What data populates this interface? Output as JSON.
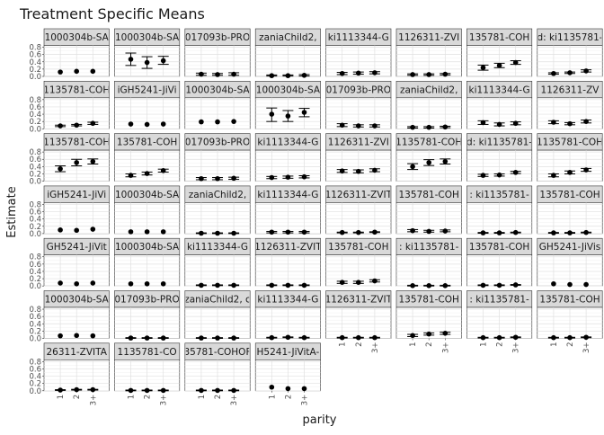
{
  "chart_data": {
    "type": "scatter",
    "title": "Treatment Specific Means",
    "xlabel": "parity",
    "ylabel": "Estimate",
    "x_categories": [
      "1",
      "2",
      "3+"
    ],
    "y_ticks": [
      "0.0",
      "0.2",
      "0.4",
      "0.6",
      "0.8"
    ],
    "ylim": [
      0,
      0.85
    ],
    "grid": true,
    "error_bars": true,
    "point_color": "#000000",
    "strip_color": "#d9d9d9",
    "ncol": 8,
    "panels": [
      {
        "strip": "1000304b-SA",
        "values": [
          0.12,
          0.14,
          0.14
        ],
        "lower": [
          null,
          null,
          null
        ],
        "upper": [
          null,
          null,
          null
        ]
      },
      {
        "strip": "1000304b-SA",
        "values": [
          0.47,
          0.38,
          0.43
        ],
        "lower": [
          0.3,
          0.22,
          0.33
        ],
        "upper": [
          0.64,
          0.54,
          0.55
        ]
      },
      {
        "strip": "017093b-PRO",
        "values": [
          0.06,
          0.05,
          0.06
        ],
        "lower": [
          0.03,
          0.03,
          0.03
        ],
        "upper": [
          0.09,
          0.08,
          0.1
        ]
      },
      {
        "strip": "zaniaChild2,",
        "values": [
          0.02,
          0.02,
          0.03
        ],
        "lower": [
          0.01,
          0.01,
          0.01
        ],
        "upper": [
          0.04,
          0.04,
          0.05
        ]
      },
      {
        "strip": "ki1113344-G",
        "values": [
          0.08,
          0.09,
          0.1
        ],
        "lower": [
          0.05,
          0.06,
          0.07
        ],
        "upper": [
          0.11,
          0.12,
          0.13
        ]
      },
      {
        "strip": "1126311-ZVI",
        "values": [
          0.05,
          0.05,
          0.06
        ],
        "lower": [
          0.03,
          0.03,
          0.04
        ],
        "upper": [
          0.07,
          0.07,
          0.08
        ]
      },
      {
        "strip": "135781-COH",
        "values": [
          0.24,
          0.3,
          0.38
        ],
        "lower": [
          0.17,
          0.24,
          0.33
        ],
        "upper": [
          0.31,
          0.36,
          0.43
        ]
      },
      {
        "strip": "d: ki1135781-",
        "values": [
          0.08,
          0.1,
          0.15
        ],
        "lower": [
          0.06,
          0.08,
          0.12
        ],
        "upper": [
          0.1,
          0.12,
          0.18
        ]
      },
      {
        "strip": "1135781-COH",
        "values": [
          0.08,
          0.1,
          0.15
        ],
        "lower": [
          0.06,
          0.08,
          0.12
        ],
        "upper": [
          0.1,
          0.12,
          0.18
        ]
      },
      {
        "strip": "iGH5241-JiVi",
        "values": [
          0.13,
          0.12,
          0.13
        ],
        "lower": [
          null,
          null,
          null
        ],
        "upper": [
          null,
          null,
          null
        ]
      },
      {
        "strip": "1000304b-SA",
        "values": [
          0.19,
          0.19,
          0.2
        ],
        "lower": [
          null,
          null,
          null
        ],
        "upper": [
          null,
          null,
          null
        ]
      },
      {
        "strip": "1000304b-SA",
        "values": [
          0.4,
          0.35,
          0.45
        ],
        "lower": [
          0.2,
          0.2,
          0.33
        ],
        "upper": [
          0.57,
          0.5,
          0.56
        ]
      },
      {
        "strip": "017093b-PRO",
        "values": [
          0.1,
          0.08,
          0.08
        ],
        "lower": [
          0.06,
          0.05,
          0.05
        ],
        "upper": [
          0.14,
          0.11,
          0.11
        ]
      },
      {
        "strip": "zaniaChild2,",
        "values": [
          0.04,
          0.04,
          0.05
        ],
        "lower": [
          0.02,
          0.02,
          0.03
        ],
        "upper": [
          0.06,
          0.06,
          0.07
        ]
      },
      {
        "strip": "ki1113344-G",
        "values": [
          0.17,
          0.12,
          0.15
        ],
        "lower": [
          0.12,
          0.08,
          0.11
        ],
        "upper": [
          0.22,
          0.16,
          0.19
        ]
      },
      {
        "strip": "1126311-ZV",
        "values": [
          0.18,
          0.14,
          0.2
        ],
        "lower": [
          0.14,
          0.11,
          0.16
        ],
        "upper": [
          0.22,
          0.17,
          0.24
        ]
      },
      {
        "strip": "1135781-COH",
        "values": [
          0.34,
          0.51,
          0.54
        ],
        "lower": [
          0.26,
          0.42,
          0.47
        ],
        "upper": [
          0.42,
          0.6,
          0.61
        ]
      },
      {
        "strip": "135781-COH",
        "values": [
          0.16,
          0.21,
          0.29
        ],
        "lower": [
          0.12,
          0.17,
          0.25
        ],
        "upper": [
          0.2,
          0.25,
          0.33
        ]
      },
      {
        "strip": "017093b-PRO",
        "values": [
          0.07,
          0.07,
          0.08
        ],
        "lower": [
          0.04,
          0.04,
          0.05
        ],
        "upper": [
          0.1,
          0.1,
          0.11
        ]
      },
      {
        "strip": "ki1113344-G",
        "values": [
          0.1,
          0.11,
          0.12
        ],
        "lower": [
          0.07,
          0.08,
          0.09
        ],
        "upper": [
          0.13,
          0.14,
          0.15
        ]
      },
      {
        "strip": "1126311-ZVI",
        "values": [
          0.28,
          0.27,
          0.3
        ],
        "lower": [
          0.24,
          0.23,
          0.26
        ],
        "upper": [
          0.32,
          0.31,
          0.34
        ]
      },
      {
        "strip": "1135781-COH",
        "values": [
          0.4,
          0.51,
          0.54
        ],
        "lower": [
          0.32,
          0.43,
          0.47
        ],
        "upper": [
          0.48,
          0.59,
          0.61
        ]
      },
      {
        "strip": "d: ki1135781-",
        "values": [
          0.16,
          0.17,
          0.24
        ],
        "lower": [
          0.13,
          0.14,
          0.21
        ],
        "upper": [
          0.19,
          0.2,
          0.27
        ]
      },
      {
        "strip": "1135781-COH",
        "values": [
          0.16,
          0.24,
          0.31
        ],
        "lower": [
          0.12,
          0.2,
          0.27
        ],
        "upper": [
          0.2,
          0.28,
          0.35
        ]
      },
      {
        "strip": "iGH5241-JiVi",
        "values": [
          0.1,
          0.09,
          0.12
        ],
        "lower": [
          null,
          null,
          null
        ],
        "upper": [
          null,
          null,
          null
        ]
      },
      {
        "strip": "1000304b-SA",
        "values": [
          0.05,
          0.05,
          0.05
        ],
        "lower": [
          null,
          null,
          null
        ],
        "upper": [
          null,
          null,
          null
        ]
      },
      {
        "strip": "zaniaChild2,",
        "values": [
          0.01,
          0.01,
          0.01
        ],
        "lower": [
          0.0,
          0.0,
          0.0
        ],
        "upper": [
          0.02,
          0.02,
          0.02
        ]
      },
      {
        "strip": "ki1113344-G",
        "values": [
          0.04,
          0.04,
          0.04
        ],
        "lower": [
          0.02,
          0.02,
          0.02
        ],
        "upper": [
          0.06,
          0.06,
          0.06
        ]
      },
      {
        "strip": "1126311-ZVIT",
        "values": [
          0.03,
          0.03,
          0.04
        ],
        "lower": [
          0.02,
          0.02,
          0.03
        ],
        "upper": [
          0.04,
          0.04,
          0.05
        ]
      },
      {
        "strip": "135781-COH",
        "values": [
          0.08,
          0.06,
          0.07
        ],
        "lower": [
          0.05,
          0.04,
          0.05
        ],
        "upper": [
          0.11,
          0.09,
          0.1
        ]
      },
      {
        "strip": ": ki1135781-",
        "values": [
          0.02,
          0.02,
          0.03
        ],
        "lower": [
          0.01,
          0.01,
          0.02
        ],
        "upper": [
          0.03,
          0.03,
          0.04
        ]
      },
      {
        "strip": "135781-COH",
        "values": [
          0.02,
          0.02,
          0.03
        ],
        "lower": [
          0.01,
          0.01,
          0.02
        ],
        "upper": [
          0.03,
          0.03,
          0.04
        ]
      },
      {
        "strip": "GH5241-JiVit",
        "values": [
          0.08,
          0.06,
          0.08
        ],
        "lower": [
          null,
          null,
          null
        ],
        "upper": [
          null,
          null,
          null
        ]
      },
      {
        "strip": "1000304b-SA",
        "values": [
          0.06,
          0.06,
          0.06
        ],
        "lower": [
          null,
          null,
          null
        ],
        "upper": [
          null,
          null,
          null
        ]
      },
      {
        "strip": "ki1113344-G",
        "values": [
          0.02,
          0.02,
          0.02
        ],
        "lower": [
          0.01,
          0.01,
          0.01
        ],
        "upper": [
          0.03,
          0.03,
          0.03
        ]
      },
      {
        "strip": "1126311-ZVIT",
        "values": [
          0.02,
          0.02,
          0.02
        ],
        "lower": [
          0.01,
          0.01,
          0.01
        ],
        "upper": [
          0.03,
          0.03,
          0.03
        ]
      },
      {
        "strip": "135781-COH",
        "values": [
          0.1,
          0.1,
          0.14
        ],
        "lower": [
          0.07,
          0.07,
          0.11
        ],
        "upper": [
          0.13,
          0.13,
          0.17
        ]
      },
      {
        "strip": ": ki1135781-",
        "values": [
          0.01,
          0.01,
          0.01
        ],
        "lower": [
          0.0,
          0.0,
          0.0
        ],
        "upper": [
          0.02,
          0.02,
          0.02
        ]
      },
      {
        "strip": "135781-COH",
        "values": [
          0.02,
          0.02,
          0.03
        ],
        "lower": [
          0.01,
          0.01,
          0.02
        ],
        "upper": [
          0.03,
          0.03,
          0.04
        ]
      },
      {
        "strip": "GH5241-JiVis",
        "values": [
          0.06,
          0.04,
          0.04
        ],
        "lower": [
          null,
          null,
          null
        ],
        "upper": [
          null,
          null,
          null
        ]
      },
      {
        "strip": "1000304b-SA",
        "values": [
          0.07,
          0.08,
          0.07
        ],
        "lower": [
          null,
          null,
          null
        ],
        "upper": [
          null,
          null,
          null
        ]
      },
      {
        "strip": "017093b-PRO",
        "values": [
          0.01,
          0.01,
          0.01
        ],
        "lower": [
          0.0,
          0.0,
          0.0
        ],
        "upper": [
          0.02,
          0.02,
          0.02
        ]
      },
      {
        "strip": "zaniaChild2, c",
        "values": [
          0.01,
          0.01,
          0.01
        ],
        "lower": [
          0.0,
          0.0,
          0.0
        ],
        "upper": [
          0.02,
          0.02,
          0.02
        ]
      },
      {
        "strip": "ki1113344-G",
        "values": [
          0.02,
          0.03,
          0.02
        ],
        "lower": [
          0.01,
          0.02,
          0.01
        ],
        "upper": [
          0.03,
          0.04,
          0.03
        ]
      },
      {
        "strip": "1126311-ZVIT",
        "values": [
          0.02,
          0.02,
          0.02
        ],
        "lower": [
          0.01,
          0.01,
          0.01
        ],
        "upper": [
          0.03,
          0.03,
          0.03
        ]
      },
      {
        "strip": "135781-COH",
        "values": [
          0.08,
          0.12,
          0.14
        ],
        "lower": [
          0.05,
          0.09,
          0.11
        ],
        "upper": [
          0.11,
          0.15,
          0.17
        ]
      },
      {
        "strip": ": ki1135781-",
        "values": [
          0.02,
          0.02,
          0.03
        ],
        "lower": [
          0.01,
          0.01,
          0.02
        ],
        "upper": [
          0.03,
          0.03,
          0.04
        ]
      },
      {
        "strip": "135781-COH",
        "values": [
          0.02,
          0.02,
          0.03
        ],
        "lower": [
          0.01,
          0.01,
          0.02
        ],
        "upper": [
          0.03,
          0.03,
          0.04
        ]
      },
      {
        "strip": "26311-ZVITA",
        "values": [
          0.02,
          0.03,
          0.03
        ],
        "lower": [
          0.01,
          0.02,
          0.02
        ],
        "upper": [
          0.03,
          0.04,
          0.04
        ]
      },
      {
        "strip": "1135781-CO",
        "values": [
          0.01,
          0.01,
          0.01
        ],
        "lower": [
          0.0,
          0.0,
          0.0
        ],
        "upper": [
          0.02,
          0.02,
          0.02
        ]
      },
      {
        "strip": "35781-COHOF",
        "values": [
          0.01,
          0.01,
          0.01
        ],
        "lower": [
          0.0,
          0.0,
          0.0
        ],
        "upper": [
          0.02,
          0.02,
          0.02
        ]
      },
      {
        "strip": "H5241-JiVitA-",
        "values": [
          0.1,
          0.06,
          0.06
        ],
        "lower": [
          null,
          null,
          null
        ],
        "upper": [
          null,
          null,
          null
        ]
      }
    ]
  }
}
